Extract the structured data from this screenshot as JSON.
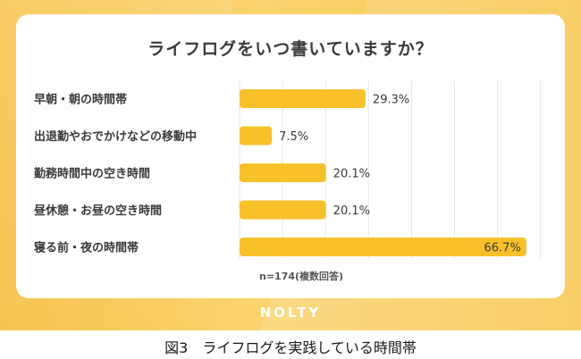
{
  "chart_data": {
    "type": "bar",
    "orientation": "horizontal",
    "title": "ライフログをいつ書いていますか？",
    "categories": [
      "早朝・朝の時間帯",
      "出退勤やおでかけなどの移動中",
      "勤務時間中の空き時間",
      "昼休憩・お昼の空き時間",
      "寝る前・夜の時間帯"
    ],
    "values": [
      29.3,
      7.5,
      20.1,
      20.1,
      66.7
    ],
    "value_labels": [
      "29.3%",
      "7.5%",
      "20.1%",
      "20.1%",
      "66.7%"
    ],
    "xlim": [
      0,
      70
    ],
    "grid": true,
    "note": "n=174(複数回答)"
  },
  "brand": "NOLTY",
  "caption": "図3　ライフログを実践している時間帯",
  "colors": {
    "bar": "#f8c12a",
    "frame": "#f9c94f",
    "grid": "#e6e6e6",
    "text": "#3a3a3a"
  }
}
